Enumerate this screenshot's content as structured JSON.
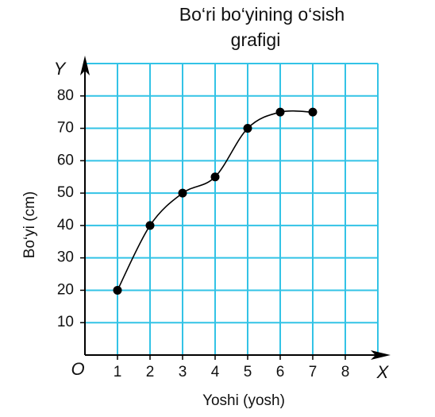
{
  "chart_data": {
    "type": "line",
    "title": "Bo‘ri bo‘yining o‘sish",
    "subtitle": "grafigi",
    "x_label": "Yoshi (yosh)",
    "y_label": "Bo‘yi (cm)",
    "x_axis_letter": "X",
    "y_axis_letter": "Y",
    "origin_label": "O",
    "x": [
      1,
      2,
      3,
      4,
      5,
      6,
      7
    ],
    "series": [
      {
        "color": "#000000",
        "values": [
          20,
          40,
          50,
          55,
          70,
          75,
          75
        ]
      }
    ],
    "xlim": [
      0,
      9
    ],
    "xticks": [
      1,
      2,
      3,
      4,
      5,
      6,
      7,
      8
    ],
    "ylim": [
      0,
      90
    ],
    "yticks": [
      10,
      20,
      30,
      40,
      50,
      60,
      70,
      80
    ],
    "grid": true,
    "grid_color": "#33c3e6"
  }
}
